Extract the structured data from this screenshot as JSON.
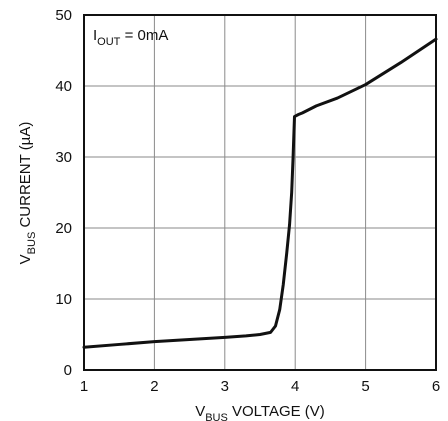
{
  "chart_data": {
    "type": "line",
    "title": "",
    "xlabel": {
      "prefix": "V",
      "subscript": "BUS",
      "suffix": " VOLTAGE (V)"
    },
    "ylabel": {
      "prefix": "V",
      "subscript": "BUS",
      "suffix": " CURRENT (µA)"
    },
    "annotation": {
      "prefix": "I",
      "subscript": "OUT",
      "suffix": " = 0mA"
    },
    "xlim": [
      1,
      6
    ],
    "ylim": [
      0,
      50
    ],
    "xticks": [
      1,
      2,
      3,
      4,
      5,
      6
    ],
    "yticks": [
      0,
      10,
      20,
      30,
      40,
      50
    ],
    "grid": true,
    "series": [
      {
        "color": "#111111",
        "points": [
          [
            1.0,
            3.2
          ],
          [
            1.5,
            3.6
          ],
          [
            2.0,
            4.0
          ],
          [
            2.5,
            4.3
          ],
          [
            3.0,
            4.6
          ],
          [
            3.3,
            4.8
          ],
          [
            3.5,
            5.0
          ],
          [
            3.65,
            5.3
          ],
          [
            3.72,
            6.2
          ],
          [
            3.78,
            8.5
          ],
          [
            3.83,
            12.0
          ],
          [
            3.88,
            16.5
          ],
          [
            3.92,
            20.5
          ],
          [
            3.95,
            25.0
          ],
          [
            3.97,
            30.0
          ],
          [
            3.99,
            35.7
          ],
          [
            4.05,
            36.0
          ],
          [
            4.1,
            36.2
          ],
          [
            4.3,
            37.2
          ],
          [
            4.6,
            38.3
          ],
          [
            5.0,
            40.2
          ],
          [
            5.5,
            43.3
          ],
          [
            6.0,
            46.6
          ]
        ]
      }
    ]
  }
}
